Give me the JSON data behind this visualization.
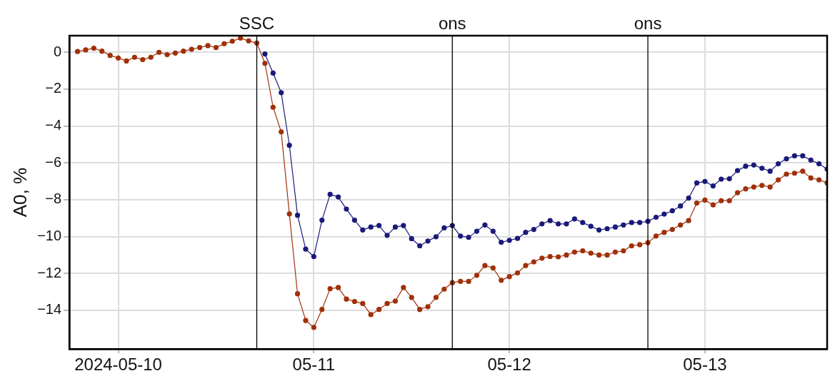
{
  "chart_data": {
    "type": "line",
    "ylabel": "A0, %",
    "xlim": [
      "2024-05-09T18:00",
      "2024-05-13T15:00"
    ],
    "xticks": [
      {
        "value": "2024-05-10",
        "label": "2024-05-10"
      },
      {
        "value": "2024-05-11",
        "label": "05-11"
      },
      {
        "value": "2024-05-12",
        "label": "05-12"
      },
      {
        "value": "2024-05-13",
        "label": "05-13"
      }
    ],
    "ylim": [
      -16.1,
      0.9
    ],
    "yticks": [
      0,
      -2,
      -4,
      -6,
      -8,
      -10,
      -12,
      -14
    ],
    "grid": true,
    "legend": false,
    "marker": "circle",
    "line_style": "solid",
    "ref_lines": [
      {
        "axis": "x",
        "value": "2024-05-10T17:00",
        "label": "SSC",
        "color": "#000000"
      },
      {
        "axis": "x",
        "value": "2024-05-11T17:00",
        "label": "ons",
        "color": "#000000"
      },
      {
        "axis": "x",
        "value": "2024-05-12T17:00",
        "label": "ons",
        "color": "#000000"
      }
    ],
    "series": [
      {
        "color": "#a0300a",
        "x": [
          "2024-05-09T19:00",
          "2024-05-09T20:00",
          "2024-05-09T21:00",
          "2024-05-09T22:00",
          "2024-05-09T23:00",
          "2024-05-10T00:00",
          "2024-05-10T01:00",
          "2024-05-10T02:00",
          "2024-05-10T03:00",
          "2024-05-10T04:00",
          "2024-05-10T05:00",
          "2024-05-10T06:00",
          "2024-05-10T07:00",
          "2024-05-10T08:00",
          "2024-05-10T09:00",
          "2024-05-10T10:00",
          "2024-05-10T11:00",
          "2024-05-10T12:00",
          "2024-05-10T13:00",
          "2024-05-10T14:00",
          "2024-05-10T15:00",
          "2024-05-10T16:00",
          "2024-05-10T17:00",
          "2024-05-10T18:00",
          "2024-05-10T19:00",
          "2024-05-10T20:00",
          "2024-05-10T21:00",
          "2024-05-10T22:00",
          "2024-05-10T23:00",
          "2024-05-11T00:00",
          "2024-05-11T01:00",
          "2024-05-11T02:00",
          "2024-05-11T03:00",
          "2024-05-11T04:00",
          "2024-05-11T05:00",
          "2024-05-11T06:00",
          "2024-05-11T07:00",
          "2024-05-11T08:00",
          "2024-05-11T09:00",
          "2024-05-11T10:00",
          "2024-05-11T11:00",
          "2024-05-11T12:00",
          "2024-05-11T13:00",
          "2024-05-11T14:00",
          "2024-05-11T15:00",
          "2024-05-11T16:00",
          "2024-05-11T17:00",
          "2024-05-11T18:00",
          "2024-05-11T19:00",
          "2024-05-11T20:00",
          "2024-05-11T21:00",
          "2024-05-11T22:00",
          "2024-05-11T23:00",
          "2024-05-12T00:00",
          "2024-05-12T01:00",
          "2024-05-12T02:00",
          "2024-05-12T03:00",
          "2024-05-12T04:00",
          "2024-05-12T05:00",
          "2024-05-12T06:00",
          "2024-05-12T07:00",
          "2024-05-12T08:00",
          "2024-05-12T09:00",
          "2024-05-12T10:00",
          "2024-05-12T11:00",
          "2024-05-12T12:00",
          "2024-05-12T13:00",
          "2024-05-12T14:00",
          "2024-05-12T15:00",
          "2024-05-12T16:00",
          "2024-05-12T17:00",
          "2024-05-12T18:00",
          "2024-05-12T19:00",
          "2024-05-12T20:00",
          "2024-05-12T21:00",
          "2024-05-12T22:00",
          "2024-05-12T23:00",
          "2024-05-13T00:00",
          "2024-05-13T01:00",
          "2024-05-13T02:00",
          "2024-05-13T03:00",
          "2024-05-13T04:00",
          "2024-05-13T05:00",
          "2024-05-13T06:00",
          "2024-05-13T07:00",
          "2024-05-13T08:00",
          "2024-05-13T09:00",
          "2024-05-13T10:00",
          "2024-05-13T11:00",
          "2024-05-13T12:00",
          "2024-05-13T13:00",
          "2024-05-13T14:00",
          "2024-05-13T15:00"
        ],
        "values": [
          0.04,
          0.13,
          0.22,
          0.06,
          -0.17,
          -0.31,
          -0.47,
          -0.27,
          -0.4,
          -0.27,
          0,
          -0.13,
          -0.04,
          0.06,
          0.16,
          0.26,
          0.36,
          0.26,
          0.46,
          0.6,
          0.77,
          0.62,
          0.5,
          -0.6,
          -2.98,
          -4.32,
          -8.77,
          -13.1,
          -14.55,
          -14.93,
          -13.95,
          -12.83,
          -12.76,
          -13.39,
          -13.52,
          -13.63,
          -14.23,
          -13.95,
          -13.63,
          -13.5,
          -12.76,
          -13.3,
          -13.95,
          -13.8,
          -13.3,
          -12.85,
          -12.5,
          -12.43,
          -12.43,
          -12.1,
          -11.57,
          -11.7,
          -12.37,
          -12.17,
          -11.97,
          -11.57,
          -11.37,
          -11.17,
          -11.08,
          -11.1,
          -11.0,
          -10.84,
          -10.77,
          -10.9,
          -11.0,
          -11.0,
          -10.84,
          -10.77,
          -10.5,
          -10.44,
          -10.33,
          -9.97,
          -9.77,
          -9.61,
          -9.37,
          -9.13,
          -8.18,
          -8.02,
          -8.28,
          -8.05,
          -8.05,
          -7.62,
          -7.41,
          -7.31,
          -7.22,
          -7.31,
          -6.92,
          -6.61,
          -6.56,
          -6.45,
          -6.82,
          -6.92,
          -7.09
        ]
      },
      {
        "color": "#1a1a7a",
        "x": [
          "2024-05-10T18:00",
          "2024-05-10T19:00",
          "2024-05-10T20:00",
          "2024-05-10T21:00",
          "2024-05-10T22:00",
          "2024-05-10T23:00",
          "2024-05-11T00:00",
          "2024-05-11T01:00",
          "2024-05-11T02:00",
          "2024-05-11T03:00",
          "2024-05-11T04:00",
          "2024-05-11T05:00",
          "2024-05-11T06:00",
          "2024-05-11T07:00",
          "2024-05-11T08:00",
          "2024-05-11T09:00",
          "2024-05-11T10:00",
          "2024-05-11T11:00",
          "2024-05-11T12:00",
          "2024-05-11T13:00",
          "2024-05-11T14:00",
          "2024-05-11T15:00",
          "2024-05-11T16:00",
          "2024-05-11T17:00",
          "2024-05-11T18:00",
          "2024-05-11T19:00",
          "2024-05-11T20:00",
          "2024-05-11T21:00",
          "2024-05-11T22:00",
          "2024-05-11T23:00",
          "2024-05-12T00:00",
          "2024-05-12T01:00",
          "2024-05-12T02:00",
          "2024-05-12T03:00",
          "2024-05-12T04:00",
          "2024-05-12T05:00",
          "2024-05-12T06:00",
          "2024-05-12T07:00",
          "2024-05-12T08:00",
          "2024-05-12T09:00",
          "2024-05-12T10:00",
          "2024-05-12T11:00",
          "2024-05-12T12:00",
          "2024-05-12T13:00",
          "2024-05-12T14:00",
          "2024-05-12T15:00",
          "2024-05-12T16:00",
          "2024-05-12T17:00",
          "2024-05-12T18:00",
          "2024-05-12T19:00",
          "2024-05-12T20:00",
          "2024-05-12T21:00",
          "2024-05-12T22:00",
          "2024-05-12T23:00",
          "2024-05-13T00:00",
          "2024-05-13T01:00",
          "2024-05-13T02:00",
          "2024-05-13T03:00",
          "2024-05-13T04:00",
          "2024-05-13T05:00",
          "2024-05-13T06:00",
          "2024-05-13T07:00",
          "2024-05-13T08:00",
          "2024-05-13T09:00",
          "2024-05-13T10:00",
          "2024-05-13T11:00",
          "2024-05-13T12:00",
          "2024-05-13T13:00",
          "2024-05-13T14:00",
          "2024-05-13T15:00"
        ],
        "values": [
          -0.09,
          -1.13,
          -2.19,
          -5.05,
          -8.84,
          -10.68,
          -11.08,
          -9.11,
          -7.71,
          -7.85,
          -8.51,
          -9.11,
          -9.64,
          -9.48,
          -9.4,
          -9.93,
          -9.48,
          -9.4,
          -10.11,
          -10.5,
          -10.24,
          -10.01,
          -9.53,
          -9.4,
          -9.97,
          -10.04,
          -9.71,
          -9.37,
          -9.71,
          -10.31,
          -10.2,
          -10.1,
          -9.77,
          -9.61,
          -9.31,
          -9.13,
          -9.31,
          -9.31,
          -9.04,
          -9.24,
          -9.44,
          -9.64,
          -9.57,
          -9.48,
          -9.37,
          -9.24,
          -9.24,
          -9.17,
          -8.95,
          -8.78,
          -8.6,
          -8.34,
          -7.91,
          -7.09,
          -7.01,
          -7.25,
          -6.88,
          -6.86,
          -6.42,
          -6.18,
          -6.12,
          -6.29,
          -6.45,
          -6.05,
          -5.78,
          -5.62,
          -5.62,
          -5.85,
          -6.05,
          -6.34
        ]
      }
    ]
  }
}
